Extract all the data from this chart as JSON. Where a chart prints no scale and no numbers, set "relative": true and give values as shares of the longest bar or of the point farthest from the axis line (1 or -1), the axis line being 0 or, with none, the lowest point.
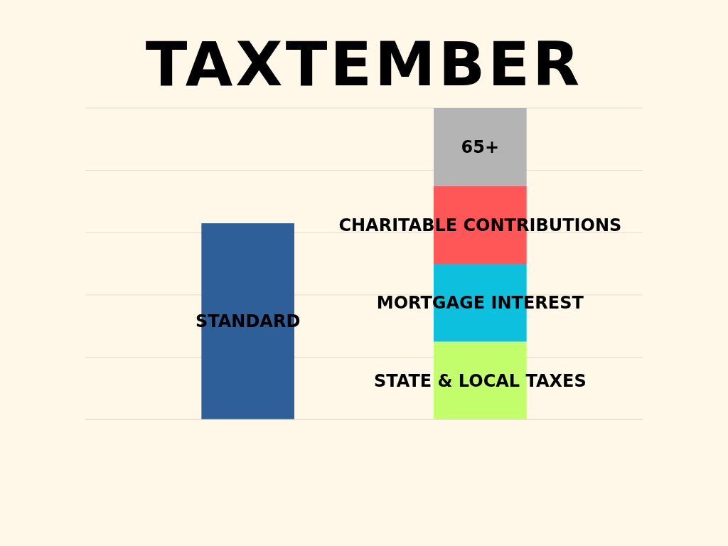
{
  "chart_data": {
    "type": "bar",
    "title": "TAXTEMBER",
    "relative": true,
    "stacked": true,
    "grid": true,
    "categories": [
      null,
      null
    ],
    "series": [
      {
        "name": "STANDARD",
        "color": "#2e5f99",
        "values": [
          0.63,
          null
        ]
      },
      {
        "name": "STATE & LOCAL TAXES",
        "color": "#c2fd6b",
        "values": [
          null,
          0.25
        ]
      },
      {
        "name": "MORTGAGE INTEREST",
        "color": "#0dc0de",
        "values": [
          null,
          0.25
        ]
      },
      {
        "name": "CHARITABLE CONTRIBUTIONS",
        "color": "#ff5757",
        "values": [
          null,
          0.25
        ]
      },
      {
        "name": "65+",
        "color": "#b4b4b4",
        "values": [
          null,
          0.25
        ]
      }
    ]
  }
}
